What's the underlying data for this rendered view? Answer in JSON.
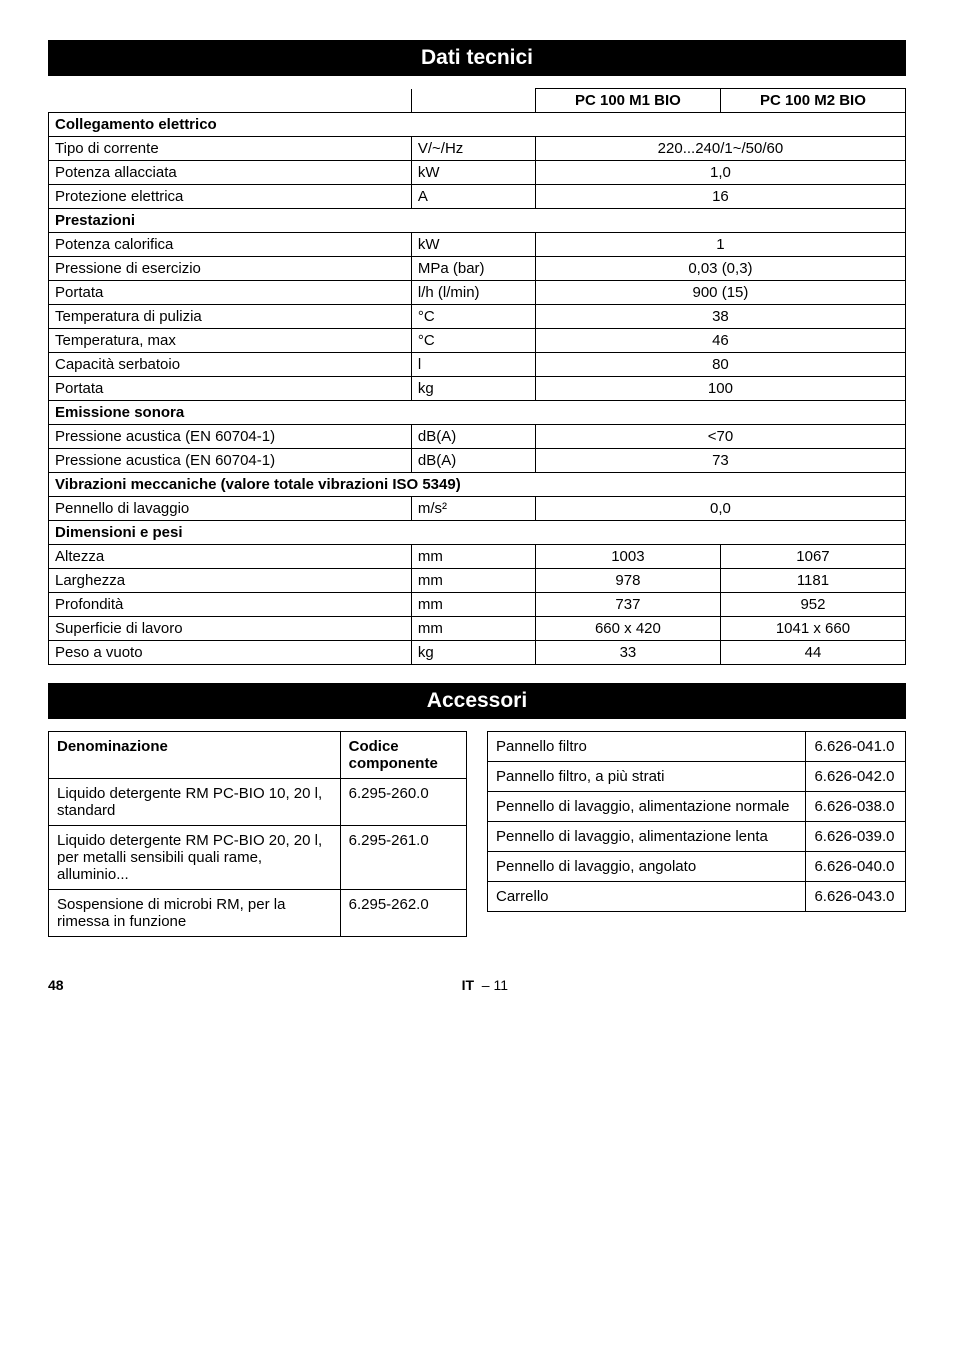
{
  "headings": {
    "dati_tecnici": "Dati tecnici",
    "accessori": "Accessori"
  },
  "main_table": {
    "col_pc1": "PC 100 M1 BIO",
    "col_pc2": "PC 100 M2 BIO",
    "sections": {
      "collegamento": "Collegamento elettrico",
      "prestazioni": "Prestazioni",
      "emissione": "Emissione sonora",
      "vibrazioni": "Vibrazioni meccaniche (valore totale vibrazioni ISO 5349)",
      "dimensioni": "Dimensioni e pesi"
    },
    "rows": {
      "tipo_corrente": {
        "label": "Tipo di corrente",
        "unit": "V/~/Hz",
        "val": "220...240/1~/50/60"
      },
      "potenza_all": {
        "label": "Potenza allacciata",
        "unit": "kW",
        "val": "1,0"
      },
      "protezione": {
        "label": "Protezione elettrica",
        "unit": "A",
        "val": "16"
      },
      "potenza_cal": {
        "label": "Potenza calorifica",
        "unit": "kW",
        "val": "1"
      },
      "pressione_es": {
        "label": "Pressione di esercizio",
        "unit": "MPa (bar)",
        "val": "0,03 (0,3)"
      },
      "portata1": {
        "label": "Portata",
        "unit": "l/h (l/min)",
        "val": "900 (15)"
      },
      "temp_pul": {
        "label": "Temperatura di pulizia",
        "unit": "°C",
        "val": "38"
      },
      "temp_max": {
        "label": "Temperatura, max",
        "unit": "°C",
        "val": "46"
      },
      "capacita": {
        "label": "Capacità serbatoio",
        "unit": "l",
        "val": "80"
      },
      "portata2": {
        "label": "Portata",
        "unit": "kg",
        "val": "100"
      },
      "press_ac1": {
        "label": "Pressione acustica (EN 60704-1)",
        "unit": "dB(A)",
        "val": "<70"
      },
      "press_ac2": {
        "label": "Pressione acustica (EN 60704-1)",
        "unit": "dB(A)",
        "val": "73"
      },
      "pennello": {
        "label": "Pennello di lavaggio",
        "unit": "m/s²",
        "val": "0,0"
      },
      "altezza": {
        "label": "Altezza",
        "unit": "mm",
        "v1": "1003",
        "v2": "1067"
      },
      "larghezza": {
        "label": "Larghezza",
        "unit": "mm",
        "v1": "978",
        "v2": "1181"
      },
      "profondita": {
        "label": "Profondità",
        "unit": "mm",
        "v1": "737",
        "v2": "952"
      },
      "superficie": {
        "label": "Superficie di lavoro",
        "unit": "mm",
        "v1": "660 x 420",
        "v2": "1041 x 660"
      },
      "peso": {
        "label": "Peso a vuoto",
        "unit": "kg",
        "v1": "33",
        "v2": "44"
      }
    }
  },
  "acc_left": {
    "head_denom": "Denominazione",
    "head_codice": "Codice componente",
    "rows": [
      {
        "d": "Liquido detergente RM PC-BIO 10, 20 l, standard",
        "c": "6.295-260.0"
      },
      {
        "d": "Liquido detergente RM PC-BIO 20, 20 l, per metalli sensibili quali rame, alluminio...",
        "c": "6.295-261.0"
      },
      {
        "d": "Sospensione di microbi RM, per la rimessa in funzione",
        "c": "6.295-262.0"
      }
    ]
  },
  "acc_right": {
    "rows": [
      {
        "d": "Pannello filtro",
        "c": "6.626-041.0"
      },
      {
        "d": "Pannello filtro, a più strati",
        "c": "6.626-042.0"
      },
      {
        "d": "Pennello di lavaggio, alimentazione normale",
        "c": "6.626-038.0"
      },
      {
        "d": "Pennello di lavaggio, alimentazione lenta",
        "c": "6.626-039.0"
      },
      {
        "d": "Pennello di lavaggio, angolato",
        "c": "6.626-040.0"
      },
      {
        "d": "Carrello",
        "c": "6.626-043.0"
      }
    ]
  },
  "footer": {
    "page_left": "48",
    "lang": "IT",
    "page_right": "– 11"
  }
}
